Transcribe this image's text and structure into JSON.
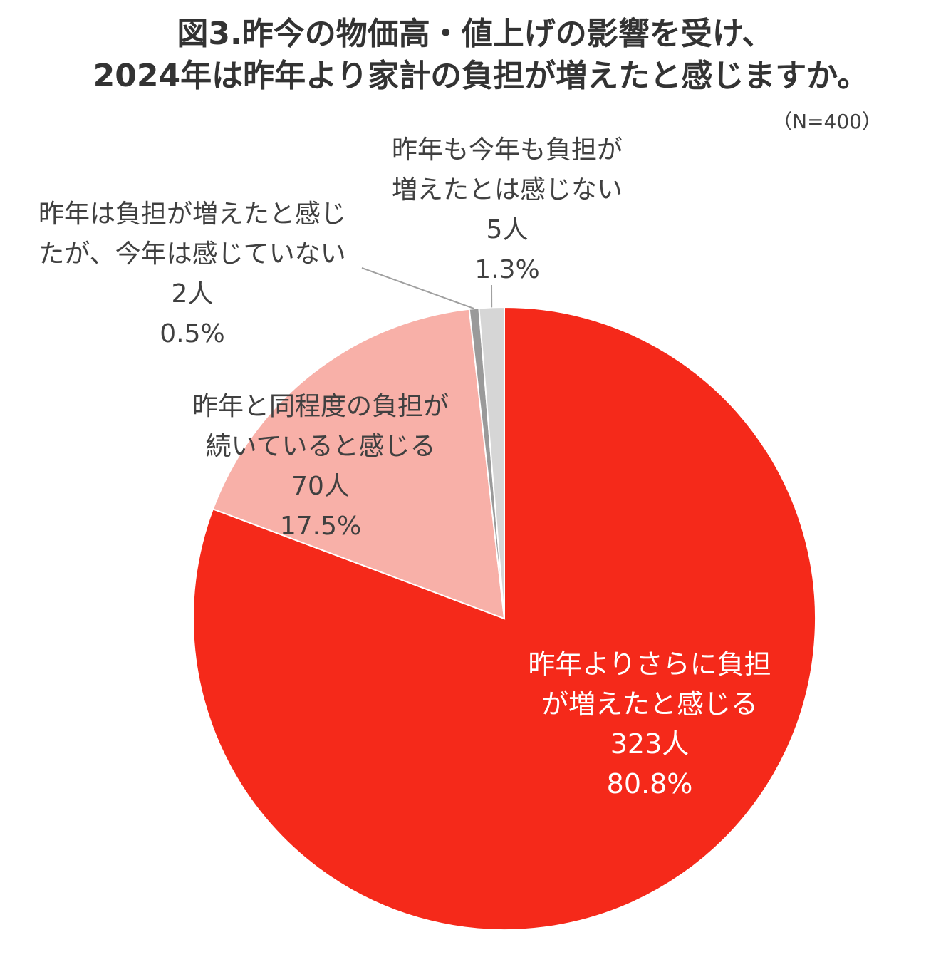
{
  "chart_data": {
    "type": "pie",
    "title": [
      "図3.昨今の物価高・値上げの影響を受け、",
      "2024年は昨年より家計の負担が増えたと感じますか。"
    ],
    "sample_size": "（N=400）",
    "start_angle_deg": 0,
    "direction": "clockwise",
    "slices": [
      {
        "name": "昨年よりさらに負担が増えたと感じる",
        "label_lines": [
          "昨年よりさらに負担",
          "が増えたと感じる"
        ],
        "count": "323人",
        "percent_label": "80.8%",
        "value": 80.8,
        "color": "#f5291a",
        "label_position": "inside"
      },
      {
        "name": "昨年と同程度の負担が続いていると感じる",
        "label_lines": [
          "昨年と同程度の負担が",
          "続いていると感じる"
        ],
        "count": "70人",
        "percent_label": "17.5%",
        "value": 17.5,
        "color": "#f8b0a8",
        "label_position": "inside"
      },
      {
        "name": "昨年は負担が増えたと感じたが、今年は感じていない",
        "label_lines": [
          "昨年は負担が増えたと感じ",
          "たが、今年は感じていない"
        ],
        "count": "2人",
        "percent_label": "0.5%",
        "value": 0.5,
        "color": "#9a9a9a",
        "label_position": "outside-left"
      },
      {
        "name": "昨年も今年も負担が増えたとは感じない",
        "label_lines": [
          "昨年も今年も負担が",
          "増えたとは感じない"
        ],
        "count": "5人",
        "percent_label": "1.3%",
        "value": 1.3,
        "color": "#d6d6d6",
        "label_position": "outside-top"
      }
    ]
  }
}
